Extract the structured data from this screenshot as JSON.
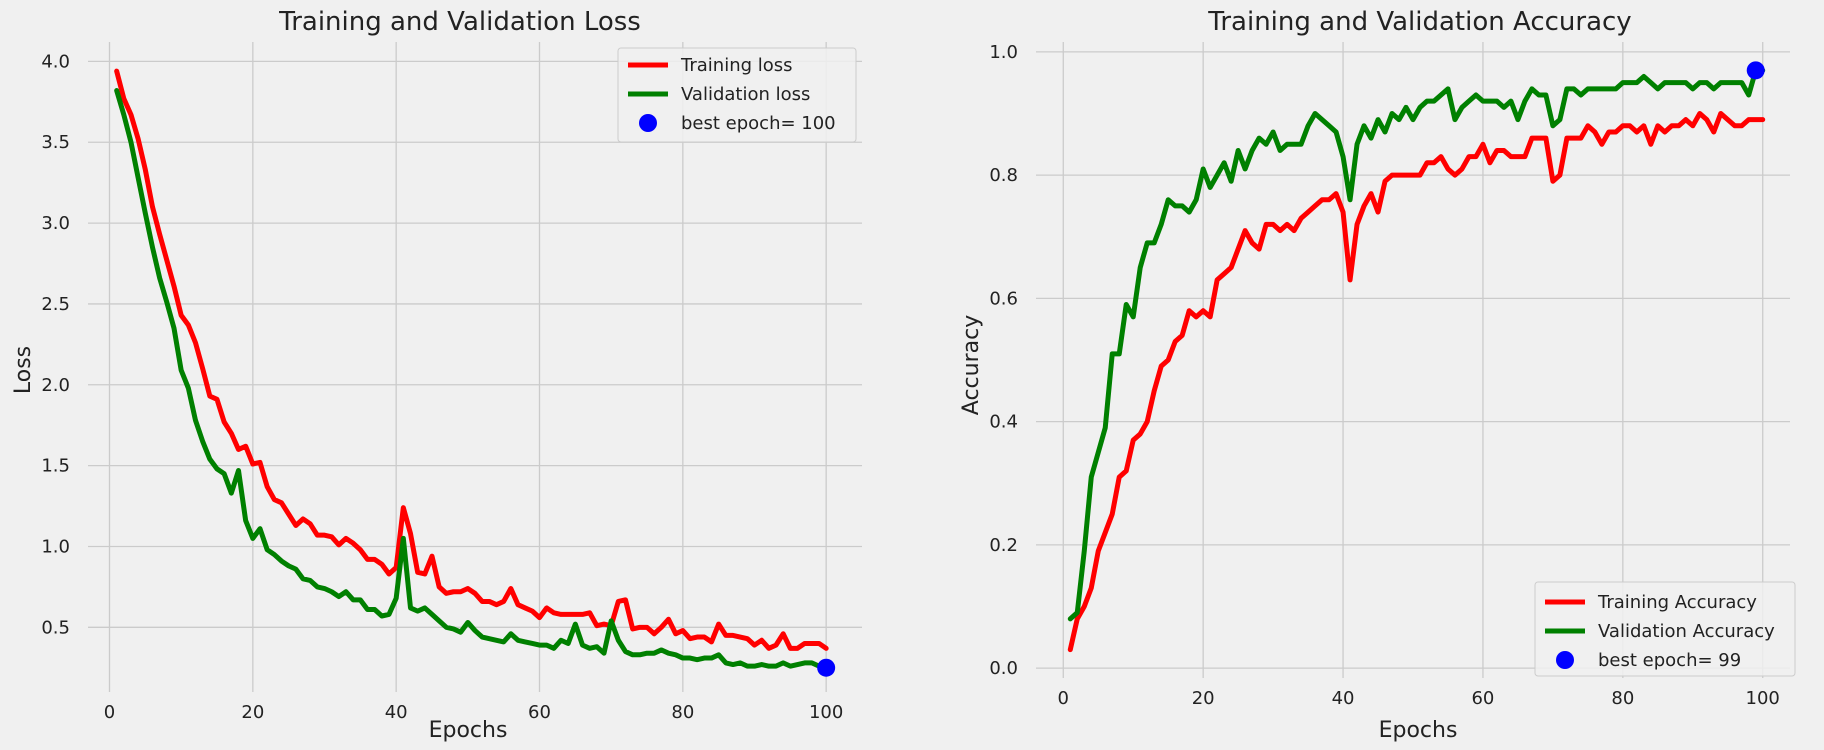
{
  "chart_data": [
    {
      "type": "line",
      "title": "Training and Validation Loss",
      "xlabel": "Epochs",
      "ylabel": "Loss",
      "xlim": [
        -3,
        105
      ],
      "ylim": [
        0.1,
        4.12
      ],
      "xticks": [
        0,
        20,
        40,
        60,
        80,
        100
      ],
      "yticks": [
        0.5,
        1.0,
        1.5,
        2.0,
        2.5,
        3.0,
        3.5,
        4.0
      ],
      "ytick_labels": [
        "0.5",
        "1.0",
        "1.5",
        "2.0",
        "2.5",
        "3.0",
        "3.5",
        "4.0"
      ],
      "grid": true,
      "legend_position": "top-right",
      "series": [
        {
          "name": "Training loss",
          "color": "#ff0000",
          "x_start": 1,
          "values": [
            3.94,
            3.77,
            3.67,
            3.52,
            3.33,
            3.1,
            2.93,
            2.77,
            2.61,
            2.43,
            2.37,
            2.26,
            2.1,
            1.93,
            1.91,
            1.77,
            1.7,
            1.6,
            1.62,
            1.51,
            1.52,
            1.37,
            1.29,
            1.27,
            1.2,
            1.13,
            1.17,
            1.14,
            1.07,
            1.07,
            1.06,
            1.01,
            1.05,
            1.02,
            0.98,
            0.92,
            0.92,
            0.89,
            0.83,
            0.87,
            1.24,
            1.08,
            0.84,
            0.83,
            0.94,
            0.75,
            0.71,
            0.72,
            0.72,
            0.74,
            0.71,
            0.66,
            0.66,
            0.64,
            0.66,
            0.74,
            0.64,
            0.62,
            0.6,
            0.56,
            0.62,
            0.59,
            0.58,
            0.58,
            0.58,
            0.58,
            0.59,
            0.51,
            0.52,
            0.51,
            0.66,
            0.67,
            0.49,
            0.5,
            0.5,
            0.46,
            0.5,
            0.55,
            0.46,
            0.48,
            0.43,
            0.44,
            0.44,
            0.41,
            0.52,
            0.45,
            0.45,
            0.44,
            0.43,
            0.39,
            0.42,
            0.37,
            0.39,
            0.46,
            0.37,
            0.37,
            0.4,
            0.4,
            0.4,
            0.37
          ]
        },
        {
          "name": "Validation loss",
          "color": "#008000",
          "x_start": 1,
          "values": [
            3.82,
            3.67,
            3.5,
            3.28,
            3.06,
            2.85,
            2.66,
            2.51,
            2.35,
            2.09,
            1.98,
            1.78,
            1.65,
            1.54,
            1.48,
            1.45,
            1.33,
            1.47,
            1.16,
            1.05,
            1.11,
            0.98,
            0.95,
            0.91,
            0.88,
            0.86,
            0.8,
            0.79,
            0.75,
            0.74,
            0.72,
            0.69,
            0.72,
            0.67,
            0.67,
            0.61,
            0.61,
            0.57,
            0.58,
            0.68,
            1.05,
            0.62,
            0.6,
            0.62,
            0.58,
            0.54,
            0.5,
            0.49,
            0.47,
            0.53,
            0.48,
            0.44,
            0.43,
            0.42,
            0.41,
            0.46,
            0.42,
            0.41,
            0.4,
            0.39,
            0.39,
            0.37,
            0.42,
            0.4,
            0.52,
            0.39,
            0.37,
            0.38,
            0.34,
            0.54,
            0.42,
            0.35,
            0.33,
            0.33,
            0.34,
            0.34,
            0.36,
            0.34,
            0.33,
            0.31,
            0.31,
            0.3,
            0.31,
            0.31,
            0.33,
            0.28,
            0.27,
            0.28,
            0.26,
            0.26,
            0.27,
            0.26,
            0.26,
            0.28,
            0.26,
            0.27,
            0.28,
            0.28,
            0.26,
            0.25
          ]
        }
      ],
      "best_point": {
        "label": "best epoch= 100",
        "x": 100,
        "y": 0.25,
        "color": "#0000ff"
      }
    },
    {
      "type": "line",
      "title": "Training and Validation Accuracy",
      "xlabel": "Epochs",
      "ylabel": "Accuracy",
      "xlim": [
        -3.9,
        103.9
      ],
      "ylim": [
        -0.016,
        1.016
      ],
      "xticks": [
        0,
        20,
        40,
        60,
        80,
        100
      ],
      "yticks": [
        0.0,
        0.2,
        0.4,
        0.6,
        0.8,
        1.0
      ],
      "ytick_labels": [
        "0.0",
        "0.2",
        "0.4",
        "0.6",
        "0.8",
        "1.0"
      ],
      "grid": true,
      "legend_position": "bottom-right",
      "series": [
        {
          "name": "Training Accuracy",
          "color": "#ff0000",
          "x_start": 1,
          "values": [
            0.03,
            0.08,
            0.1,
            0.13,
            0.19,
            0.22,
            0.25,
            0.31,
            0.32,
            0.37,
            0.38,
            0.4,
            0.45,
            0.49,
            0.5,
            0.53,
            0.54,
            0.58,
            0.57,
            0.58,
            0.57,
            0.63,
            0.64,
            0.65,
            0.68,
            0.71,
            0.69,
            0.68,
            0.72,
            0.72,
            0.71,
            0.72,
            0.71,
            0.73,
            0.74,
            0.75,
            0.76,
            0.76,
            0.77,
            0.74,
            0.63,
            0.72,
            0.75,
            0.77,
            0.74,
            0.79,
            0.8,
            0.8,
            0.8,
            0.8,
            0.8,
            0.82,
            0.82,
            0.83,
            0.81,
            0.8,
            0.81,
            0.83,
            0.83,
            0.85,
            0.82,
            0.84,
            0.84,
            0.83,
            0.83,
            0.83,
            0.86,
            0.86,
            0.86,
            0.79,
            0.8,
            0.86,
            0.86,
            0.86,
            0.88,
            0.87,
            0.85,
            0.87,
            0.87,
            0.88,
            0.88,
            0.87,
            0.88,
            0.85,
            0.88,
            0.87,
            0.88,
            0.88,
            0.89,
            0.88,
            0.9,
            0.89,
            0.87,
            0.9,
            0.89,
            0.88,
            0.88,
            0.89,
            0.89,
            0.89
          ]
        },
        {
          "name": "Validation Accuracy",
          "color": "#008000",
          "x_start": 1,
          "values": [
            0.08,
            0.09,
            0.19,
            0.31,
            0.35,
            0.39,
            0.51,
            0.51,
            0.59,
            0.57,
            0.65,
            0.69,
            0.69,
            0.72,
            0.76,
            0.75,
            0.75,
            0.74,
            0.76,
            0.81,
            0.78,
            0.8,
            0.82,
            0.79,
            0.84,
            0.81,
            0.84,
            0.86,
            0.85,
            0.87,
            0.84,
            0.85,
            0.85,
            0.85,
            0.88,
            0.9,
            0.89,
            0.88,
            0.87,
            0.83,
            0.76,
            0.85,
            0.88,
            0.86,
            0.89,
            0.87,
            0.9,
            0.89,
            0.91,
            0.89,
            0.91,
            0.92,
            0.92,
            0.93,
            0.94,
            0.89,
            0.91,
            0.92,
            0.93,
            0.92,
            0.92,
            0.92,
            0.91,
            0.92,
            0.89,
            0.92,
            0.94,
            0.93,
            0.93,
            0.88,
            0.89,
            0.94,
            0.94,
            0.93,
            0.94,
            0.94,
            0.94,
            0.94,
            0.94,
            0.95,
            0.95,
            0.95,
            0.96,
            0.95,
            0.94,
            0.95,
            0.95,
            0.95,
            0.95,
            0.94,
            0.95,
            0.95,
            0.94,
            0.95,
            0.95,
            0.95,
            0.95,
            0.93,
            0.97,
            0.97
          ]
        }
      ],
      "best_point": {
        "label": "best epoch= 99",
        "x": 99,
        "y": 0.97,
        "color": "#0000ff"
      }
    }
  ]
}
